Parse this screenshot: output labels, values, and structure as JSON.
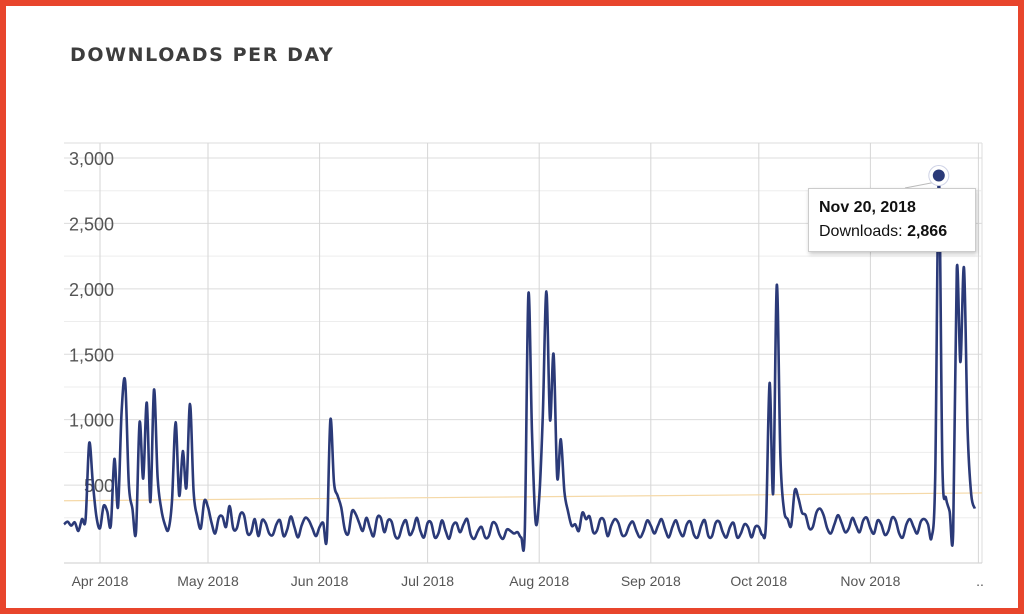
{
  "title": "DOWNLOADS PER DAY",
  "tooltip": {
    "date": "Nov 20, 2018",
    "label": "Downloads:",
    "value": "2,866"
  },
  "colors": {
    "frame": "#e8452c",
    "line": "#2b3a78",
    "trend": "#f5d9a8",
    "grid": "#dddddd"
  },
  "chart_data": {
    "type": "line",
    "x_start": "2018-03-22",
    "x_end": "2018-12-02",
    "ylim": [
      0,
      3000
    ],
    "y_ticks": [
      {
        "value": 500,
        "label": "500"
      },
      {
        "value": 1000,
        "label": "1,000"
      },
      {
        "value": 1500,
        "label": "1,500"
      },
      {
        "value": 2000,
        "label": "2,000"
      },
      {
        "value": 2500,
        "label": "2,500"
      },
      {
        "value": 3000,
        "label": "3,000"
      }
    ],
    "x_ticks": [
      {
        "date": "2018-04-01",
        "label": "Apr 2018"
      },
      {
        "date": "2018-05-01",
        "label": "May 2018"
      },
      {
        "date": "2018-06-01",
        "label": "Jun 2018"
      },
      {
        "date": "2018-07-01",
        "label": "Jul 2018"
      },
      {
        "date": "2018-08-01",
        "label": "Aug 2018"
      },
      {
        "date": "2018-09-01",
        "label": "Sep 2018"
      },
      {
        "date": "2018-10-01",
        "label": "Oct 2018"
      },
      {
        "date": "2018-11-01",
        "label": "Nov 2018"
      },
      {
        "date": "2018-12-01",
        "label": ".."
      }
    ],
    "trend": {
      "start": 380,
      "end": 440
    },
    "highlight": {
      "date": "2018-11-20",
      "value": 2866
    },
    "series": [
      {
        "values": [
          [
            "2018-03-22",
            200
          ],
          [
            "2018-03-23",
            220
          ],
          [
            "2018-03-24",
            190
          ],
          [
            "2018-03-25",
            215
          ],
          [
            "2018-03-26",
            150
          ],
          [
            "2018-03-27",
            240
          ],
          [
            "2018-03-28",
            240
          ],
          [
            "2018-03-29",
            820
          ],
          [
            "2018-03-30",
            520
          ],
          [
            "2018-03-31",
            260
          ],
          [
            "2018-04-01",
            170
          ],
          [
            "2018-04-02",
            340
          ],
          [
            "2018-04-03",
            300
          ],
          [
            "2018-04-04",
            190
          ],
          [
            "2018-04-05",
            700
          ],
          [
            "2018-04-06",
            330
          ],
          [
            "2018-04-07",
            1060
          ],
          [
            "2018-04-08",
            1290
          ],
          [
            "2018-04-09",
            510
          ],
          [
            "2018-04-10",
            320
          ],
          [
            "2018-04-11",
            140
          ],
          [
            "2018-04-12",
            980
          ],
          [
            "2018-04-13",
            550
          ],
          [
            "2018-04-14",
            1130
          ],
          [
            "2018-04-15",
            370
          ],
          [
            "2018-04-16",
            1230
          ],
          [
            "2018-04-17",
            560
          ],
          [
            "2018-04-18",
            320
          ],
          [
            "2018-04-19",
            200
          ],
          [
            "2018-04-20",
            160
          ],
          [
            "2018-04-21",
            380
          ],
          [
            "2018-04-22",
            980
          ],
          [
            "2018-04-23",
            420
          ],
          [
            "2018-04-24",
            760
          ],
          [
            "2018-04-25",
            480
          ],
          [
            "2018-04-26",
            1120
          ],
          [
            "2018-04-27",
            450
          ],
          [
            "2018-04-28",
            260
          ],
          [
            "2018-04-29",
            170
          ],
          [
            "2018-04-30",
            380
          ],
          [
            "2018-05-01",
            330
          ],
          [
            "2018-05-02",
            210
          ],
          [
            "2018-05-03",
            130
          ],
          [
            "2018-05-04",
            250
          ],
          [
            "2018-05-05",
            260
          ],
          [
            "2018-05-06",
            180
          ],
          [
            "2018-05-07",
            340
          ],
          [
            "2018-05-08",
            170
          ],
          [
            "2018-05-09",
            170
          ],
          [
            "2018-05-10",
            280
          ],
          [
            "2018-05-11",
            270
          ],
          [
            "2018-05-12",
            130
          ],
          [
            "2018-05-13",
            140
          ],
          [
            "2018-05-14",
            240
          ],
          [
            "2018-05-15",
            110
          ],
          [
            "2018-05-16",
            230
          ],
          [
            "2018-05-17",
            210
          ],
          [
            "2018-05-18",
            130
          ],
          [
            "2018-05-19",
            120
          ],
          [
            "2018-05-20",
            200
          ],
          [
            "2018-05-21",
            230
          ],
          [
            "2018-05-22",
            110
          ],
          [
            "2018-05-23",
            160
          ],
          [
            "2018-05-24",
            260
          ],
          [
            "2018-05-25",
            180
          ],
          [
            "2018-05-26",
            100
          ],
          [
            "2018-05-27",
            190
          ],
          [
            "2018-05-28",
            250
          ],
          [
            "2018-05-29",
            230
          ],
          [
            "2018-05-30",
            170
          ],
          [
            "2018-05-31",
            110
          ],
          [
            "2018-06-01",
            180
          ],
          [
            "2018-06-02",
            210
          ],
          [
            "2018-06-03",
            90
          ],
          [
            "2018-06-04",
            1000
          ],
          [
            "2018-06-05",
            520
          ],
          [
            "2018-06-06",
            420
          ],
          [
            "2018-06-07",
            330
          ],
          [
            "2018-06-08",
            160
          ],
          [
            "2018-06-09",
            130
          ],
          [
            "2018-06-10",
            300
          ],
          [
            "2018-06-11",
            280
          ],
          [
            "2018-06-12",
            210
          ],
          [
            "2018-06-13",
            150
          ],
          [
            "2018-06-14",
            250
          ],
          [
            "2018-06-15",
            170
          ],
          [
            "2018-06-16",
            110
          ],
          [
            "2018-06-17",
            250
          ],
          [
            "2018-06-18",
            250
          ],
          [
            "2018-06-19",
            140
          ],
          [
            "2018-06-20",
            230
          ],
          [
            "2018-06-21",
            220
          ],
          [
            "2018-06-22",
            110
          ],
          [
            "2018-06-23",
            100
          ],
          [
            "2018-06-24",
            190
          ],
          [
            "2018-06-25",
            230
          ],
          [
            "2018-06-26",
            120
          ],
          [
            "2018-06-27",
            160
          ],
          [
            "2018-06-28",
            250
          ],
          [
            "2018-06-29",
            150
          ],
          [
            "2018-06-30",
            100
          ],
          [
            "2018-07-01",
            210
          ],
          [
            "2018-07-02",
            210
          ],
          [
            "2018-07-03",
            100
          ],
          [
            "2018-07-04",
            130
          ],
          [
            "2018-07-05",
            230
          ],
          [
            "2018-07-06",
            150
          ],
          [
            "2018-07-07",
            90
          ],
          [
            "2018-07-08",
            190
          ],
          [
            "2018-07-09",
            210
          ],
          [
            "2018-07-10",
            140
          ],
          [
            "2018-07-11",
            200
          ],
          [
            "2018-07-12",
            240
          ],
          [
            "2018-07-13",
            120
          ],
          [
            "2018-07-14",
            90
          ],
          [
            "2018-07-15",
            150
          ],
          [
            "2018-07-16",
            180
          ],
          [
            "2018-07-17",
            100
          ],
          [
            "2018-07-18",
            110
          ],
          [
            "2018-07-19",
            210
          ],
          [
            "2018-07-20",
            200
          ],
          [
            "2018-07-21",
            120
          ],
          [
            "2018-07-22",
            90
          ],
          [
            "2018-07-23",
            160
          ],
          [
            "2018-07-24",
            150
          ],
          [
            "2018-07-25",
            130
          ],
          [
            "2018-07-26",
            140
          ],
          [
            "2018-07-27",
            100
          ],
          [
            "2018-07-28",
            150
          ],
          [
            "2018-07-29",
            1960
          ],
          [
            "2018-07-30",
            900
          ],
          [
            "2018-07-31",
            220
          ],
          [
            "2018-08-01",
            400
          ],
          [
            "2018-08-02",
            1030
          ],
          [
            "2018-08-03",
            1980
          ],
          [
            "2018-08-04",
            1000
          ],
          [
            "2018-08-05",
            1500
          ],
          [
            "2018-08-06",
            560
          ],
          [
            "2018-08-07",
            850
          ],
          [
            "2018-08-08",
            450
          ],
          [
            "2018-08-09",
            300
          ],
          [
            "2018-08-10",
            190
          ],
          [
            "2018-08-11",
            200
          ],
          [
            "2018-08-12",
            150
          ],
          [
            "2018-08-13",
            290
          ],
          [
            "2018-08-14",
            240
          ],
          [
            "2018-08-15",
            260
          ],
          [
            "2018-08-16",
            140
          ],
          [
            "2018-08-17",
            150
          ],
          [
            "2018-08-18",
            240
          ],
          [
            "2018-08-19",
            230
          ],
          [
            "2018-08-20",
            110
          ],
          [
            "2018-08-21",
            190
          ],
          [
            "2018-08-22",
            240
          ],
          [
            "2018-08-23",
            210
          ],
          [
            "2018-08-24",
            120
          ],
          [
            "2018-08-25",
            120
          ],
          [
            "2018-08-26",
            190
          ],
          [
            "2018-08-27",
            220
          ],
          [
            "2018-08-28",
            150
          ],
          [
            "2018-08-29",
            100
          ],
          [
            "2018-08-30",
            150
          ],
          [
            "2018-08-31",
            230
          ],
          [
            "2018-09-01",
            190
          ],
          [
            "2018-09-02",
            130
          ],
          [
            "2018-09-03",
            190
          ],
          [
            "2018-09-04",
            240
          ],
          [
            "2018-09-05",
            160
          ],
          [
            "2018-09-06",
            100
          ],
          [
            "2018-09-07",
            180
          ],
          [
            "2018-09-08",
            230
          ],
          [
            "2018-09-09",
            150
          ],
          [
            "2018-09-10",
            110
          ],
          [
            "2018-09-11",
            200
          ],
          [
            "2018-09-12",
            220
          ],
          [
            "2018-09-13",
            120
          ],
          [
            "2018-09-14",
            100
          ],
          [
            "2018-09-15",
            190
          ],
          [
            "2018-09-16",
            230
          ],
          [
            "2018-09-17",
            110
          ],
          [
            "2018-09-18",
            110
          ],
          [
            "2018-09-19",
            210
          ],
          [
            "2018-09-20",
            220
          ],
          [
            "2018-09-21",
            140
          ],
          [
            "2018-09-22",
            100
          ],
          [
            "2018-09-23",
            180
          ],
          [
            "2018-09-24",
            210
          ],
          [
            "2018-09-25",
            100
          ],
          [
            "2018-09-26",
            130
          ],
          [
            "2018-09-27",
            200
          ],
          [
            "2018-09-28",
            180
          ],
          [
            "2018-09-29",
            100
          ],
          [
            "2018-09-30",
            180
          ],
          [
            "2018-10-01",
            180
          ],
          [
            "2018-10-02",
            120
          ],
          [
            "2018-10-03",
            210
          ],
          [
            "2018-10-04",
            1280
          ],
          [
            "2018-10-05",
            440
          ],
          [
            "2018-10-06",
            2030
          ],
          [
            "2018-10-07",
            720
          ],
          [
            "2018-10-08",
            310
          ],
          [
            "2018-10-09",
            240
          ],
          [
            "2018-10-10",
            190
          ],
          [
            "2018-10-11",
            460
          ],
          [
            "2018-10-12",
            400
          ],
          [
            "2018-10-13",
            290
          ],
          [
            "2018-10-14",
            270
          ],
          [
            "2018-10-15",
            170
          ],
          [
            "2018-10-16",
            180
          ],
          [
            "2018-10-17",
            290
          ],
          [
            "2018-10-18",
            320
          ],
          [
            "2018-10-19",
            270
          ],
          [
            "2018-10-20",
            170
          ],
          [
            "2018-10-21",
            130
          ],
          [
            "2018-10-22",
            200
          ],
          [
            "2018-10-23",
            270
          ],
          [
            "2018-10-24",
            210
          ],
          [
            "2018-10-25",
            140
          ],
          [
            "2018-10-26",
            170
          ],
          [
            "2018-10-27",
            250
          ],
          [
            "2018-10-28",
            190
          ],
          [
            "2018-10-29",
            140
          ],
          [
            "2018-10-30",
            230
          ],
          [
            "2018-10-31",
            250
          ],
          [
            "2018-11-01",
            170
          ],
          [
            "2018-11-02",
            130
          ],
          [
            "2018-11-03",
            230
          ],
          [
            "2018-11-04",
            200
          ],
          [
            "2018-11-05",
            120
          ],
          [
            "2018-11-06",
            150
          ],
          [
            "2018-11-07",
            250
          ],
          [
            "2018-11-08",
            230
          ],
          [
            "2018-11-09",
            130
          ],
          [
            "2018-11-10",
            100
          ],
          [
            "2018-11-11",
            200
          ],
          [
            "2018-11-12",
            240
          ],
          [
            "2018-11-13",
            180
          ],
          [
            "2018-11-14",
            130
          ],
          [
            "2018-11-15",
            220
          ],
          [
            "2018-11-16",
            240
          ],
          [
            "2018-11-17",
            200
          ],
          [
            "2018-11-18",
            100
          ],
          [
            "2018-11-19",
            560
          ],
          [
            "2018-11-20",
            2866
          ],
          [
            "2018-11-21",
            650
          ],
          [
            "2018-11-22",
            400
          ],
          [
            "2018-11-23",
            300
          ],
          [
            "2018-11-24",
            150
          ],
          [
            "2018-11-25",
            2150
          ],
          [
            "2018-11-26",
            1440
          ],
          [
            "2018-11-27",
            2160
          ],
          [
            "2018-11-28",
            920
          ],
          [
            "2018-11-29",
            430
          ],
          [
            "2018-11-30",
            320
          ]
        ]
      }
    ]
  }
}
